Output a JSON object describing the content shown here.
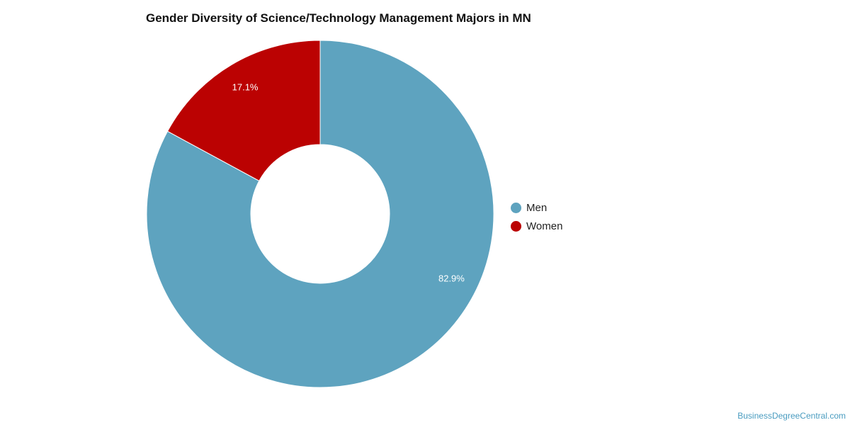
{
  "chart_data": {
    "type": "pie",
    "donut": true,
    "title": "Gender Diversity of Science/Technology Management Majors in MN",
    "series": [
      {
        "name": "Men",
        "value": 82.9,
        "label": "82.9%",
        "color": "#5ea3bf"
      },
      {
        "name": "Women",
        "value": 17.1,
        "label": "17.1%",
        "color": "#bb0202"
      }
    ],
    "legend_position": "right"
  },
  "watermark": "BusinessDegreeCentral.com"
}
